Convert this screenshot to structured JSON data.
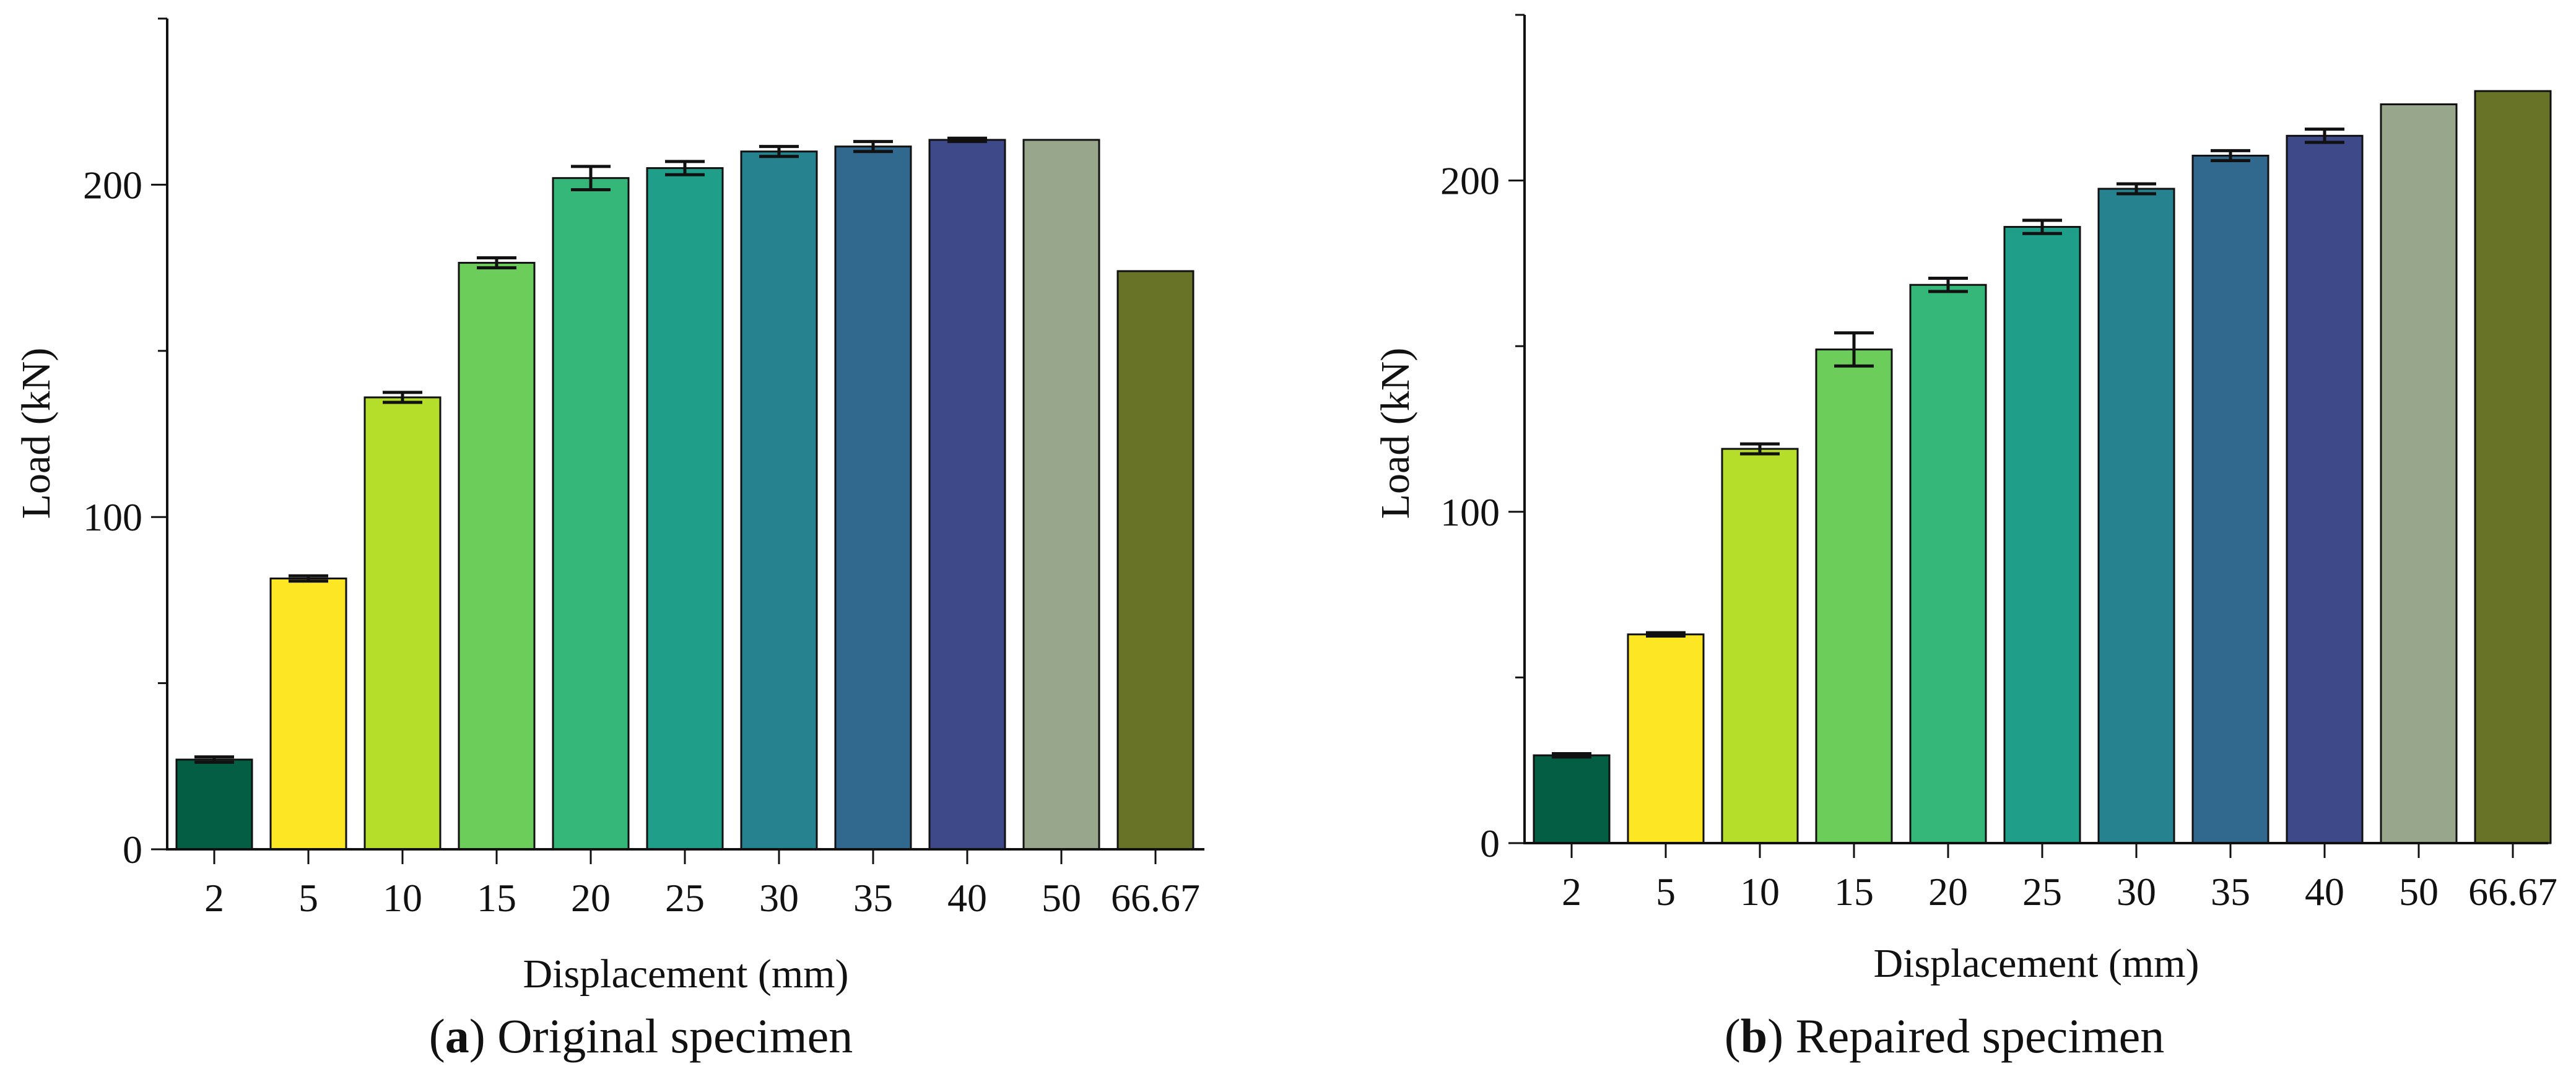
{
  "figure": {
    "caption_a": {
      "open": "(",
      "letter": "a",
      "rest": ") Original specimen"
    },
    "caption_b": {
      "open": "(",
      "letter": "b",
      "rest": ") Repaired specimen"
    }
  },
  "chart_data": [
    {
      "id": "a",
      "type": "bar",
      "title": "",
      "xlabel": "Displacement (mm)",
      "ylabel": "Load (kN)",
      "ylim": [
        0,
        250
      ],
      "yticks_major": [
        0,
        100,
        200
      ],
      "yticks_minor": [
        50,
        150,
        250
      ],
      "categories": [
        "2",
        "5",
        "10",
        "15",
        "20",
        "25",
        "30",
        "35",
        "40",
        "50",
        "66.67"
      ],
      "values": [
        27,
        81.5,
        136,
        176.5,
        202,
        205,
        210,
        211.5,
        213.5,
        213.5,
        174
      ],
      "errors": [
        0.8,
        0.8,
        1.5,
        1.5,
        3.5,
        2,
        1.5,
        1.5,
        0.5,
        0,
        0
      ],
      "colors": [
        "#045e43",
        "#fde725",
        "#b5de2b",
        "#6ccd5a",
        "#35b779",
        "#1f9e89",
        "#26828e",
        "#31688e",
        "#3e4989",
        "#98a68b",
        "#687327"
      ]
    },
    {
      "id": "b",
      "type": "bar",
      "title": "",
      "xlabel": "Displacement (mm)",
      "ylabel": "Load (kN)",
      "ylim": [
        0,
        250
      ],
      "yticks_major": [
        0,
        100,
        200
      ],
      "yticks_minor": [
        50,
        150,
        250
      ],
      "categories": [
        "2",
        "5",
        "10",
        "15",
        "20",
        "25",
        "30",
        "35",
        "40",
        "50",
        "66.67"
      ],
      "values": [
        26.5,
        63,
        119,
        149,
        168.5,
        186,
        197.5,
        207.5,
        213.5,
        223,
        227
      ],
      "errors": [
        0.5,
        0.5,
        1.5,
        5,
        2,
        2,
        1.5,
        1.5,
        2,
        0,
        0
      ],
      "colors": [
        "#045e43",
        "#fde725",
        "#b5de2b",
        "#6ccd5a",
        "#35b779",
        "#1f9e89",
        "#26828e",
        "#31688e",
        "#3e4989",
        "#98a68b",
        "#687327"
      ]
    }
  ]
}
